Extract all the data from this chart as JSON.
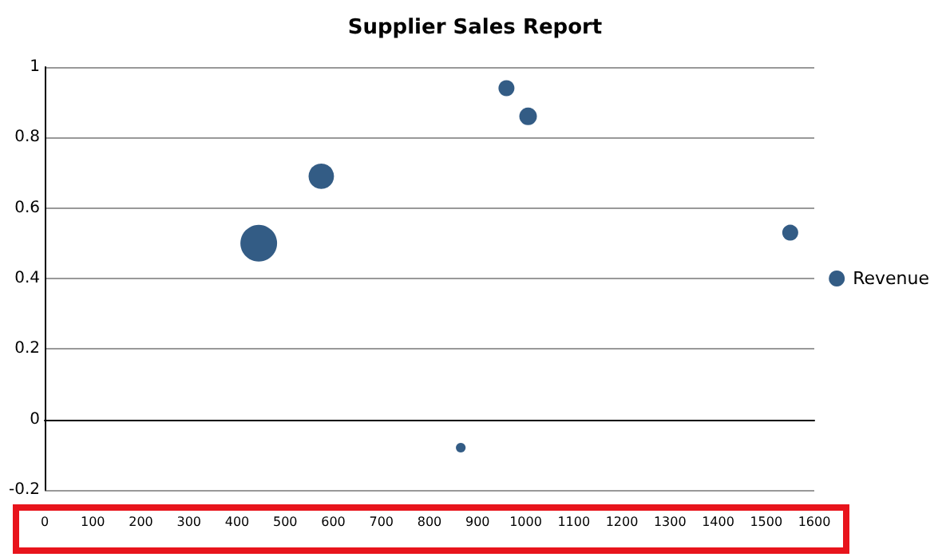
{
  "chart_data": {
    "type": "bubble",
    "title": "Supplier Sales Report",
    "x": [
      445,
      575,
      960,
      1005,
      1550,
      865
    ],
    "series": [
      {
        "name": "Revenue",
        "color": "#003366",
        "values": [
          0.5,
          0.69,
          0.94,
          0.86,
          0.53,
          -0.08
        ],
        "sizes": [
          1,
          0.48,
          0.19,
          0.23,
          0.19,
          0.07
        ]
      }
    ],
    "xlim": [
      0,
      1600
    ],
    "xticks": [
      0,
      100,
      200,
      300,
      400,
      500,
      600,
      700,
      800,
      900,
      1000,
      1100,
      1200,
      1300,
      1400,
      1500,
      1600
    ],
    "ylim": [
      -0.2,
      1
    ],
    "yticks": [
      -0.2,
      0,
      0.2,
      0.4,
      0.6,
      0.8,
      1
    ],
    "grid": "y",
    "legend": "right",
    "marker": "circle"
  }
}
